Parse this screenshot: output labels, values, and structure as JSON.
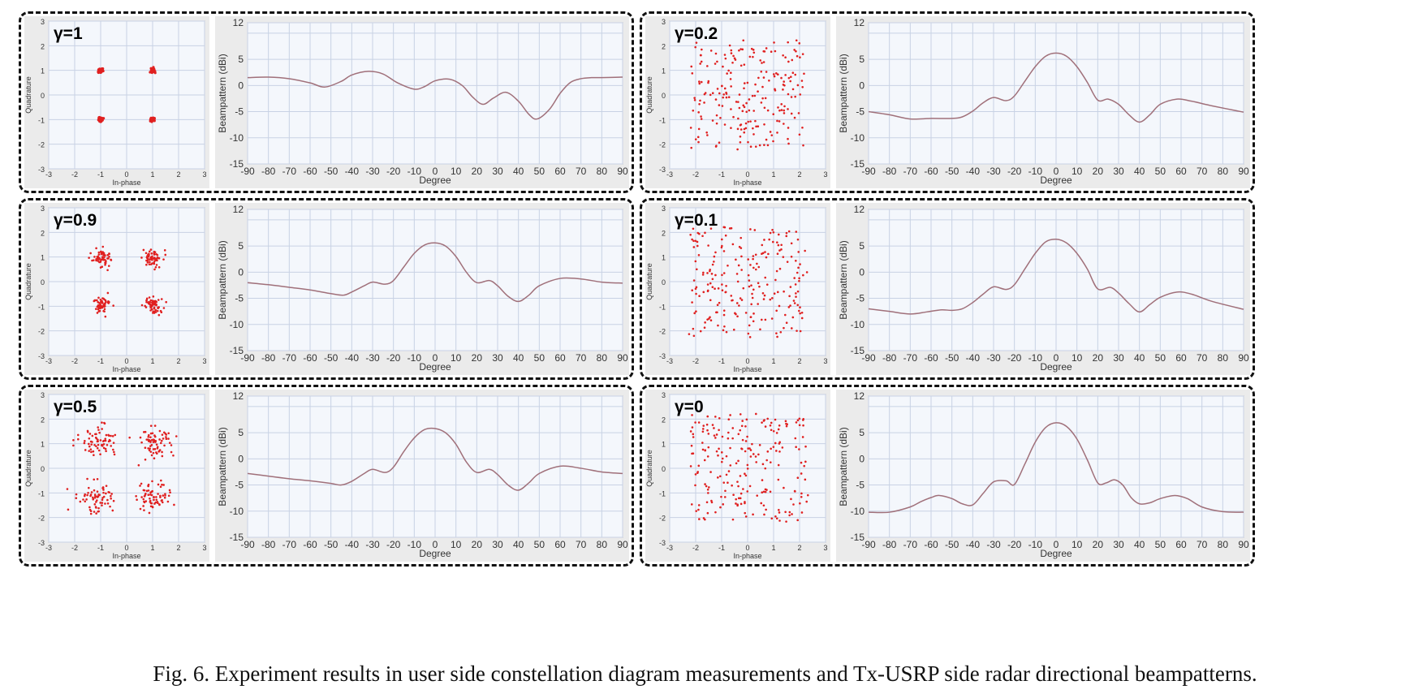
{
  "caption": "Fig. 6. Experiment results in user side constellation diagram measurements and Tx-USRP side radar directional beampatterns.",
  "colors": {
    "points": "#e02020",
    "curve": "#a0707a",
    "grid": "#c8d2e4",
    "plot_bg": "#f4f7fc",
    "panel_bg": "#ebebeb"
  },
  "chart_data": [
    {
      "type": "scatter",
      "title": "γ=1",
      "xlabel": "In-phase",
      "ylabel": "Quadrature",
      "xlim": [
        -3,
        3
      ],
      "ylim": [
        -3,
        3
      ],
      "xticks": [
        "-3",
        "-2",
        "-1",
        "0",
        "1",
        "2",
        "3"
      ],
      "yticks": [
        "3",
        "2",
        "1",
        "0",
        "-1",
        "-2",
        "-3"
      ],
      "grid": true,
      "clusters": [
        {
          "x": -1,
          "y": 1,
          "spread": 0.05,
          "count": 40
        },
        {
          "x": 1,
          "y": 1,
          "spread": 0.05,
          "count": 40
        },
        {
          "x": -1,
          "y": -1,
          "spread": 0.05,
          "count": 40
        },
        {
          "x": 1,
          "y": -1,
          "spread": 0.05,
          "count": 40
        }
      ]
    },
    {
      "type": "line",
      "xlabel": "Degree",
      "ylabel": "Beampattern (dBi)",
      "xlim": [
        -90,
        90
      ],
      "ylim": [
        -15,
        12
      ],
      "xticks": [
        "-90",
        "-80",
        "-70",
        "-60",
        "-50",
        "-40",
        "-30",
        "-20",
        "-10",
        "0",
        "10",
        "20",
        "30",
        "40",
        "50",
        "60",
        "70",
        "80",
        "90"
      ],
      "yticks": [
        "12",
        "5",
        "0",
        "-5",
        "-10",
        "-15"
      ],
      "grid": true,
      "x": [
        -90,
        -80,
        -70,
        -60,
        -53,
        -45,
        -40,
        -32,
        -25,
        -18,
        -10,
        -5,
        0,
        7,
        13,
        18,
        23,
        28,
        34,
        40,
        45,
        49,
        55,
        60,
        65,
        70,
        75,
        80,
        90
      ],
      "y": [
        1.5,
        1.6,
        1.3,
        0.5,
        -0.3,
        0.8,
        2.0,
        2.7,
        2.2,
        0.5,
        -0.7,
        -0.2,
        0.9,
        1.2,
        0.0,
        -2.2,
        -3.6,
        -2.4,
        -1.3,
        -3.0,
        -5.5,
        -6.4,
        -4.5,
        -1.5,
        0.6,
        1.3,
        1.5,
        1.5,
        1.6
      ]
    },
    {
      "type": "scatter",
      "title": "γ=0.2",
      "xlabel": "In-phase",
      "ylabel": "Quadrature",
      "xlim": [
        -3,
        3
      ],
      "ylim": [
        -3,
        3
      ],
      "xticks": [
        "-3",
        "-2",
        "-1",
        "0",
        "1",
        "2",
        "3"
      ],
      "yticks": [
        "3",
        "2",
        "1",
        "0",
        "-1",
        "-2",
        "-3"
      ],
      "grid": true,
      "clusters": [
        {
          "x": 0,
          "y": 0,
          "spread": 1.1,
          "count": 220
        }
      ]
    },
    {
      "type": "line",
      "xlabel": "Degree",
      "ylabel": "Beampattern (dBi)",
      "xlim": [
        -90,
        90
      ],
      "ylim": [
        -15,
        12
      ],
      "xticks": [
        "-90",
        "-80",
        "-70",
        "-60",
        "-50",
        "-40",
        "-30",
        "-20",
        "-10",
        "0",
        "10",
        "20",
        "30",
        "40",
        "50",
        "60",
        "70",
        "80",
        "90"
      ],
      "yticks": [
        "12",
        "5",
        "0",
        "-5",
        "-10",
        "-15"
      ],
      "grid": true,
      "x": [
        -90,
        -80,
        -70,
        -60,
        -50,
        -45,
        -40,
        -35,
        -30,
        -24,
        -20,
        -15,
        -10,
        -5,
        0,
        5,
        10,
        15,
        20,
        25,
        30,
        35,
        40,
        45,
        50,
        58,
        65,
        75,
        90
      ],
      "y": [
        -5.0,
        -5.6,
        -6.4,
        -6.3,
        -6.3,
        -6.0,
        -4.9,
        -3.3,
        -2.3,
        -2.9,
        -2.0,
        0.8,
        3.6,
        5.6,
        6.2,
        5.6,
        3.6,
        0.6,
        -2.8,
        -2.6,
        -3.6,
        -5.6,
        -7.0,
        -5.6,
        -3.6,
        -2.6,
        -3.0,
        -3.9,
        -5.1
      ]
    },
    {
      "type": "scatter",
      "title": "γ=0.9",
      "xlabel": "In-phase",
      "ylabel": "Quadrature",
      "xlim": [
        -3,
        3
      ],
      "ylim": [
        -3,
        3
      ],
      "xticks": [
        "-3",
        "-2",
        "-1",
        "0",
        "1",
        "2",
        "3"
      ],
      "yticks": [
        "3",
        "2",
        "1",
        "0",
        "-1",
        "-2",
        "-3"
      ],
      "grid": true,
      "clusters": [
        {
          "x": -0.95,
          "y": 0.95,
          "spread": 0.18,
          "count": 60
        },
        {
          "x": 1.0,
          "y": 0.95,
          "spread": 0.18,
          "count": 60
        },
        {
          "x": -0.95,
          "y": -0.9,
          "spread": 0.18,
          "count": 60
        },
        {
          "x": 1.0,
          "y": -0.95,
          "spread": 0.18,
          "count": 60
        }
      ]
    },
    {
      "type": "line",
      "xlabel": "Degree",
      "ylabel": "Beampattern (dBi)",
      "xlim": [
        -90,
        90
      ],
      "ylim": [
        -15,
        12
      ],
      "xticks": [
        "-90",
        "-80",
        "-70",
        "-60",
        "-50",
        "-40",
        "-30",
        "-20",
        "-10",
        "0",
        "10",
        "20",
        "30",
        "40",
        "50",
        "60",
        "70",
        "80",
        "90"
      ],
      "yticks": [
        "12",
        "5",
        "0",
        "-5",
        "-10",
        "-15"
      ],
      "grid": true,
      "x": [
        -90,
        -80,
        -70,
        -60,
        -50,
        -44,
        -40,
        -34,
        -30,
        -24,
        -20,
        -15,
        -10,
        -5,
        0,
        5,
        10,
        15,
        20,
        26,
        30,
        35,
        40,
        45,
        50,
        60,
        70,
        80,
        90
      ],
      "y": [
        -2.0,
        -2.4,
        -2.9,
        -3.4,
        -4.1,
        -4.4,
        -3.8,
        -2.6,
        -1.9,
        -2.3,
        -1.6,
        1.0,
        3.6,
        5.2,
        5.6,
        5.0,
        3.0,
        0.0,
        -2.0,
        -1.6,
        -2.6,
        -4.6,
        -5.6,
        -4.4,
        -2.6,
        -1.2,
        -1.3,
        -1.9,
        -2.1
      ]
    },
    {
      "type": "scatter",
      "title": "γ=0.1",
      "xlabel": "In-phase",
      "ylabel": "Quadrature",
      "xlim": [
        -3,
        3
      ],
      "ylim": [
        -3,
        3
      ],
      "xticks": [
        "-3",
        "-2",
        "-1",
        "0",
        "1",
        "2",
        "3"
      ],
      "yticks": [
        "3",
        "2",
        "1",
        "0",
        "-1",
        "-2",
        "-3"
      ],
      "grid": true,
      "clusters": [
        {
          "x": 0,
          "y": 0,
          "spread": 1.2,
          "count": 220
        }
      ]
    },
    {
      "type": "line",
      "xlabel": "Degree",
      "ylabel": "Beampattern (dBi)",
      "xlim": [
        -90,
        90
      ],
      "ylim": [
        -15,
        12
      ],
      "xticks": [
        "-90",
        "-80",
        "-70",
        "-60",
        "-50",
        "-40",
        "-30",
        "-20",
        "-10",
        "0",
        "10",
        "20",
        "30",
        "40",
        "50",
        "60",
        "70",
        "80",
        "90"
      ],
      "yticks": [
        "12",
        "5",
        "0",
        "-5",
        "-10",
        "-15"
      ],
      "grid": true,
      "x": [
        -90,
        -80,
        -70,
        -62,
        -55,
        -50,
        -45,
        -40,
        -35,
        -30,
        -24,
        -20,
        -15,
        -10,
        -5,
        0,
        5,
        10,
        15,
        20,
        26,
        30,
        35,
        40,
        45,
        50,
        58,
        65,
        75,
        90
      ],
      "y": [
        -7.0,
        -7.5,
        -8.0,
        -7.6,
        -7.2,
        -7.3,
        -7.0,
        -5.8,
        -4.2,
        -2.8,
        -3.3,
        -2.4,
        0.6,
        3.6,
        5.8,
        6.3,
        5.6,
        3.6,
        0.6,
        -3.2,
        -2.9,
        -4.0,
        -6.0,
        -7.6,
        -6.2,
        -4.8,
        -3.8,
        -4.2,
        -5.6,
        -7.1
      ]
    },
    {
      "type": "scatter",
      "title": "γ=0.5",
      "xlabel": "In-phase",
      "ylabel": "Quadrature",
      "xlim": [
        -3,
        3
      ],
      "ylim": [
        -3,
        3
      ],
      "xticks": [
        "-3",
        "-2",
        "-1",
        "0",
        "1",
        "2",
        "3"
      ],
      "yticks": [
        "3",
        "2",
        "1",
        "0",
        "-1",
        "-2",
        "-3"
      ],
      "grid": true,
      "clusters": [
        {
          "x": -1.1,
          "y": 1.1,
          "spread": 0.35,
          "count": 70
        },
        {
          "x": 1.1,
          "y": 1.05,
          "spread": 0.35,
          "count": 70
        },
        {
          "x": -1.1,
          "y": -1.15,
          "spread": 0.35,
          "count": 70
        },
        {
          "x": 1.0,
          "y": -1.15,
          "spread": 0.35,
          "count": 70
        }
      ]
    },
    {
      "type": "line",
      "xlabel": "Degree",
      "ylabel": "Beampattern (dBi)",
      "xlim": [
        -90,
        90
      ],
      "ylim": [
        -15,
        12
      ],
      "xticks": [
        "-90",
        "-80",
        "-70",
        "-60",
        "-50",
        "-40",
        "-30",
        "-20",
        "-10",
        "0",
        "10",
        "20",
        "30",
        "40",
        "50",
        "60",
        "70",
        "80",
        "90"
      ],
      "yticks": [
        "12",
        "5",
        "0",
        "-5",
        "-10",
        "-15"
      ],
      "grid": true,
      "x": [
        -90,
        -80,
        -70,
        -60,
        -50,
        -45,
        -40,
        -34,
        -30,
        -24,
        -20,
        -15,
        -10,
        -5,
        0,
        5,
        10,
        15,
        20,
        26,
        30,
        35,
        40,
        45,
        50,
        60,
        70,
        80,
        90
      ],
      "y": [
        -2.8,
        -3.3,
        -3.8,
        -4.2,
        -4.7,
        -5.0,
        -4.3,
        -2.8,
        -2.0,
        -2.6,
        -1.6,
        1.4,
        4.0,
        5.6,
        5.8,
        5.0,
        2.8,
        -0.6,
        -2.6,
        -2.0,
        -3.0,
        -5.0,
        -6.0,
        -4.6,
        -2.8,
        -1.4,
        -1.8,
        -2.5,
        -2.8
      ]
    },
    {
      "type": "scatter",
      "title": "γ=0",
      "xlabel": "In-phase",
      "ylabel": "Quadrature",
      "xlim": [
        -3,
        3
      ],
      "ylim": [
        -3,
        3
      ],
      "xticks": [
        "-3",
        "-2",
        "-1",
        "0",
        "1",
        "2",
        "3"
      ],
      "yticks": [
        "3",
        "2",
        "1",
        "0",
        "-1",
        "-2",
        "-3"
      ],
      "grid": true,
      "clusters": [
        {
          "x": 0,
          "y": 0,
          "spread": 1.25,
          "count": 220
        }
      ]
    },
    {
      "type": "line",
      "xlabel": "Degree",
      "ylabel": "Beampattern (dBi)",
      "xlim": [
        -90,
        90
      ],
      "ylim": [
        -15,
        12
      ],
      "xticks": [
        "-90",
        "-80",
        "-70",
        "-60",
        "-50",
        "-40",
        "-30",
        "-20",
        "-10",
        "0",
        "10",
        "20",
        "30",
        "40",
        "50",
        "60",
        "70",
        "80",
        "90"
      ],
      "yticks": [
        "12",
        "5",
        "0",
        "-5",
        "-10",
        "-15"
      ],
      "grid": true,
      "x": [
        -90,
        -80,
        -70,
        -65,
        -60,
        -56,
        -50,
        -45,
        -40,
        -35,
        -30,
        -24,
        -20,
        -15,
        -10,
        -5,
        0,
        5,
        10,
        15,
        20,
        24,
        28,
        32,
        36,
        40,
        45,
        50,
        57,
        63,
        70,
        80,
        90
      ],
      "y": [
        -10.2,
        -10.2,
        -9.2,
        -8.2,
        -7.4,
        -7.0,
        -7.6,
        -8.6,
        -8.8,
        -6.6,
        -4.4,
        -4.2,
        -4.9,
        -1.0,
        3.2,
        6.0,
        6.9,
        6.2,
        3.8,
        -0.2,
        -4.6,
        -4.6,
        -4.0,
        -5.0,
        -7.4,
        -8.6,
        -8.4,
        -7.6,
        -7.0,
        -7.6,
        -9.2,
        -10.1,
        -10.2
      ]
    }
  ]
}
